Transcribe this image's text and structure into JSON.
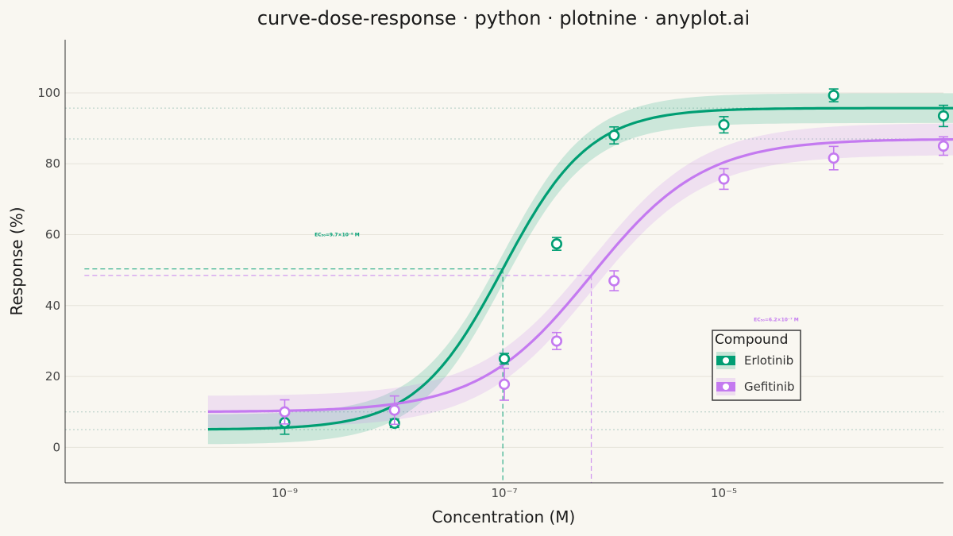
{
  "chart_data": {
    "type": "line",
    "title": "curve-dose-response · python · plotnine · anyplot.ai",
    "xlabel": "Concentration (M)",
    "ylabel": "Response (%)",
    "x_scale": "log10",
    "xlim": [
      1e-11,
      0.001
    ],
    "ylim": [
      -10,
      115
    ],
    "x_ticks": [
      {
        "value": 1e-09,
        "label": "10⁻⁹"
      },
      {
        "value": 1e-07,
        "label": "10⁻⁷"
      },
      {
        "value": 1e-05,
        "label": "10⁻⁵"
      }
    ],
    "y_ticks": [
      0,
      20,
      40,
      60,
      80,
      100
    ],
    "grid": true,
    "legend": {
      "title": "Compound",
      "position": "right"
    },
    "series": [
      {
        "name": "Erlotinib",
        "color": "#009e73",
        "fit": {
          "bottom": 5,
          "top": 95.7,
          "ec50": 9.7e-08,
          "hill": 1.1
        },
        "band_halfwidth": 4.2,
        "points": [
          {
            "x": 1e-09,
            "y": 7.0,
            "err": 3.3
          },
          {
            "x": 1e-08,
            "y": 6.8,
            "err": 1.2
          },
          {
            "x": 1e-07,
            "y": 25.0,
            "err": 1.5
          },
          {
            "x": 3e-07,
            "y": 57.4,
            "err": 1.8
          },
          {
            "x": 1e-06,
            "y": 88.0,
            "err": 2.4
          },
          {
            "x": 1e-05,
            "y": 91.0,
            "err": 2.3
          },
          {
            "x": 0.0001,
            "y": 99.3,
            "err": 1.8
          },
          {
            "x": 0.001,
            "y": 93.5,
            "err": 3.0
          }
        ],
        "ec50_label": "EC₅₀=9.7×10⁻⁸ M"
      },
      {
        "name": "Gefitinib",
        "color": "#c47af0",
        "fit": {
          "bottom": 10,
          "top": 87,
          "ec50": 6.2e-07,
          "hill": 0.85
        },
        "band_halfwidth": 4.5,
        "points": [
          {
            "x": 1e-09,
            "y": 10.0,
            "err": 3.4
          },
          {
            "x": 1e-08,
            "y": 10.5,
            "err": 4.0
          },
          {
            "x": 1e-07,
            "y": 17.8,
            "err": 4.5
          },
          {
            "x": 3e-07,
            "y": 30.0,
            "err": 2.4
          },
          {
            "x": 1e-06,
            "y": 47.0,
            "err": 2.8
          },
          {
            "x": 1e-05,
            "y": 75.7,
            "err": 2.9
          },
          {
            "x": 0.0001,
            "y": 81.6,
            "err": 3.3
          },
          {
            "x": 0.001,
            "y": 85.0,
            "err": 2.6
          }
        ],
        "ec50_label": "EC₅₀=6.2×10⁻⁷ M"
      }
    ]
  }
}
